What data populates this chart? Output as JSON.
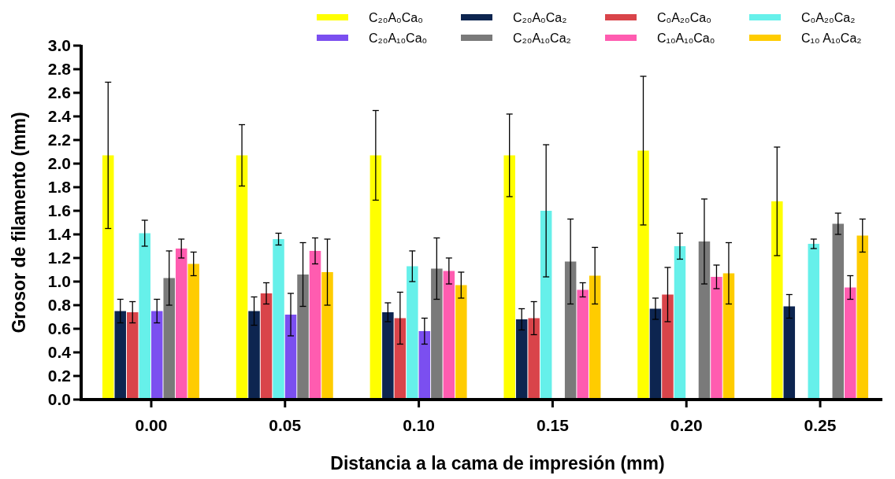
{
  "chart_data": {
    "type": "bar",
    "xlabel": "Distancia a la cama de impresión (mm)",
    "ylabel": "Grosor de filamento (mm)",
    "categories": [
      "0.00",
      "0.05",
      "0.10",
      "0.15",
      "0.20",
      "0.25"
    ],
    "ylim": [
      0,
      3.0
    ],
    "yticks": [
      {
        "value": 0,
        "label": "0.0"
      },
      0.2,
      0.4,
      0.6,
      0.8,
      {
        "value": 1,
        "label": "1.0"
      },
      1.2,
      1.4,
      1.6,
      1.8,
      {
        "value": 2,
        "label": "2.0"
      },
      2.2,
      2.4,
      2.6,
      2.8,
      {
        "value": 3,
        "label": "3.0"
      }
    ],
    "grid": false,
    "legend": "top right",
    "series": [
      {
        "name": "C₂₀A₀Ca₀",
        "color": "#ffff00",
        "values": [
          2.07,
          2.07,
          2.07,
          2.07,
          2.11,
          1.68
        ],
        "errors": [
          0.62,
          0.26,
          0.38,
          0.35,
          0.63,
          0.46
        ]
      },
      {
        "name": "C₂₀A₀Ca₂",
        "color": "#0d2550",
        "values": [
          0.75,
          0.75,
          0.74,
          0.68,
          0.77,
          0.79
        ],
        "errors": [
          0.1,
          0.12,
          0.08,
          0.09,
          0.09,
          0.1
        ]
      },
      {
        "name": "C₀A₂₀Ca₀",
        "color": "#d9444a",
        "values": [
          0.74,
          0.9,
          0.69,
          0.69,
          0.89,
          null
        ],
        "errors": [
          0.09,
          0.09,
          0.22,
          0.14,
          0.23,
          null
        ]
      },
      {
        "name": "C₀A₂₀Ca₂",
        "color": "#66f0ea",
        "values": [
          1.41,
          1.36,
          1.13,
          1.6,
          1.3,
          1.32
        ],
        "errors": [
          0.11,
          0.05,
          0.13,
          0.56,
          0.11,
          0.04
        ]
      },
      {
        "name": "C₂₀A₁₀Ca₀",
        "color": "#7b4ff0",
        "values": [
          0.75,
          0.72,
          0.58,
          null,
          null,
          null
        ],
        "errors": [
          0.1,
          0.18,
          0.11,
          null,
          null,
          null
        ]
      },
      {
        "name": "C₂₀A₁₀Ca₂",
        "color": "#7a7a7a",
        "values": [
          1.03,
          1.06,
          1.11,
          1.17,
          1.34,
          1.49
        ],
        "errors": [
          0.23,
          0.27,
          0.26,
          0.36,
          0.36,
          0.09
        ]
      },
      {
        "name": "C₁₀A₁₀Ca₀",
        "color": "#ff5cb0",
        "values": [
          1.28,
          1.26,
          1.09,
          0.93,
          1.04,
          0.95
        ],
        "errors": [
          0.08,
          0.11,
          0.11,
          0.06,
          0.1,
          0.1
        ]
      },
      {
        "name": "C₁₀ A₁₀Ca₂",
        "color": "#ffcc00",
        "values": [
          1.15,
          1.08,
          0.97,
          1.05,
          1.07,
          1.39
        ],
        "errors": [
          0.1,
          0.28,
          0.11,
          0.24,
          0.26,
          0.14
        ]
      }
    ]
  }
}
